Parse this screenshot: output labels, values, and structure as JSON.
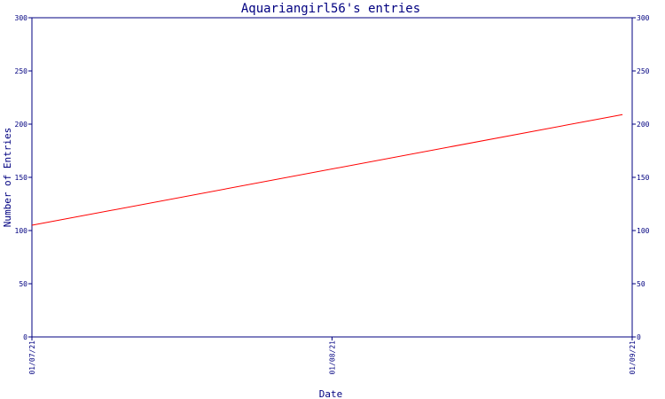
{
  "chart_data": {
    "type": "line",
    "title": "Aquariangirl56's entries",
    "xlabel": "Date",
    "ylabel": "Number of Entries",
    "x_ticks": [
      "01/07/21",
      "01/08/21",
      "01/09/21"
    ],
    "y_ticks": [
      0,
      50,
      100,
      150,
      200,
      250,
      300
    ],
    "ylim": [
      0,
      300
    ],
    "y_axis_sides": [
      "left",
      "right"
    ],
    "grid": false,
    "series": [
      {
        "color": "#ff0000",
        "points": [
          {
            "x": "2021-07-01",
            "y": 105
          },
          {
            "x": "2021-08-31",
            "y": 209
          }
        ]
      }
    ]
  },
  "colors": {
    "axis": "#000080",
    "text": "#000080",
    "line": "#ff0000"
  }
}
